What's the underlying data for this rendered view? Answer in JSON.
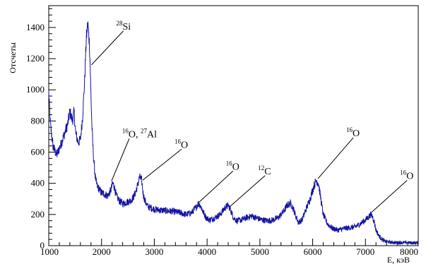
{
  "chart_data": {
    "type": "line",
    "xlabel": "E, кэВ",
    "ylabel": "Отсчеты",
    "xlim": [
      1000,
      8000
    ],
    "ylim": [
      0,
      1540
    ],
    "xticks": [
      1000,
      2000,
      3000,
      4000,
      5000,
      6000,
      7000,
      8000
    ],
    "xtick_labels": [
      "1000",
      "2000",
      "3000",
      "4000",
      "5000",
      "6000",
      "7000",
      "8000"
    ],
    "yticks": [
      0,
      200,
      400,
      600,
      800,
      1000,
      1200,
      1400
    ],
    "ytick_labels": [
      "0",
      "200",
      "400",
      "600",
      "800",
      "1000",
      "1200",
      "1400"
    ],
    "grid": false,
    "series": [
      {
        "color": "#1414a0",
        "x": [
          1000,
          1030,
          1080,
          1150,
          1230,
          1300,
          1360,
          1400,
          1450,
          1480,
          1510,
          1560,
          1600,
          1640,
          1680,
          1710,
          1740,
          1770,
          1785,
          1800,
          1815,
          1830,
          1850,
          1870,
          1890,
          1920,
          1960,
          2000,
          2060,
          2120,
          2180,
          2210,
          2240,
          2280,
          2330,
          2400,
          2480,
          2560,
          2620,
          2680,
          2720,
          2760,
          2790,
          2830,
          2880,
          2950,
          3050,
          3200,
          3350,
          3500,
          3600,
          3700,
          3780,
          3830,
          3870,
          3920,
          3980,
          4050,
          4150,
          4250,
          4330,
          4400,
          4450,
          4500,
          4560,
          4650,
          4750,
          4850,
          4950,
          5050,
          5150,
          5250,
          5350,
          5450,
          5520,
          5580,
          5620,
          5680,
          5730,
          5800,
          5870,
          5950,
          6020,
          6070,
          6110,
          6150,
          6200,
          6280,
          6380,
          6480,
          6600,
          6700,
          6800,
          6900,
          6980,
          7050,
          7100,
          7130,
          7160,
          7200,
          7260,
          7350,
          7500,
          7700,
          7900,
          8000
        ],
        "y": [
          980,
          780,
          640,
          580,
          650,
          720,
          780,
          860,
          800,
          860,
          720,
          660,
          680,
          820,
          1060,
          1320,
          1430,
          1300,
          1150,
          960,
          790,
          680,
          560,
          480,
          420,
          380,
          360,
          340,
          330,
          320,
          360,
          400,
          380,
          320,
          290,
          270,
          280,
          290,
          320,
          380,
          440,
          420,
          330,
          280,
          250,
          240,
          230,
          225,
          220,
          210,
          200,
          210,
          240,
          270,
          260,
          220,
          180,
          165,
          180,
          200,
          240,
          260,
          225,
          180,
          160,
          165,
          180,
          190,
          175,
          165,
          160,
          165,
          180,
          220,
          260,
          270,
          250,
          190,
          150,
          165,
          230,
          300,
          380,
          420,
          400,
          310,
          200,
          140,
          110,
          100,
          110,
          115,
          120,
          140,
          160,
          180,
          200,
          190,
          160,
          100,
          60,
          30,
          20,
          20,
          18,
          18
        ]
      }
    ],
    "annotations": [
      {
        "isotope": "28",
        "text": "Si",
        "x": 1810,
        "y": 1160
      },
      {
        "isotope": "16",
        "text": "O, ",
        "isotope2": "27",
        "text2": "Al",
        "x": 2190,
        "y": 415
      },
      {
        "isotope": "16",
        "text": "O",
        "x": 2780,
        "y": 420
      },
      {
        "isotope": "16",
        "text": "O",
        "x": 3820,
        "y": 270
      },
      {
        "isotope": "12",
        "text": "C",
        "x": 4430,
        "y": 250
      },
      {
        "isotope": "16",
        "text": "O",
        "x": 6100,
        "y": 430
      },
      {
        "isotope": "16",
        "text": "O",
        "x": 7120,
        "y": 215
      }
    ]
  }
}
